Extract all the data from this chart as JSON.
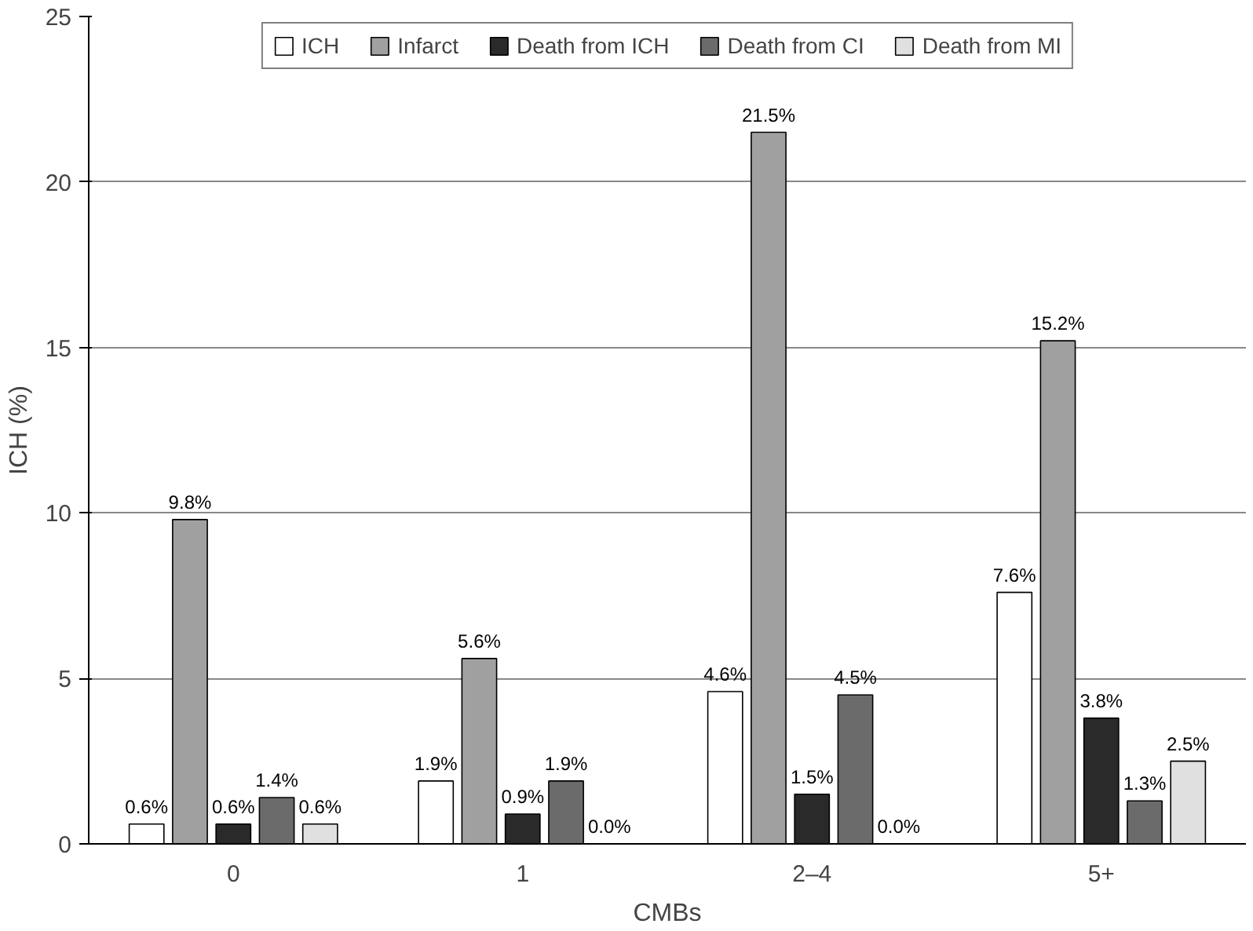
{
  "chart_data": {
    "type": "bar",
    "xlabel": "CMBs",
    "ylabel": "ICH (%)",
    "categories": [
      "0",
      "1",
      "2–4",
      "5+"
    ],
    "series": [
      {
        "name": "ICH",
        "color": "#ffffff",
        "values": [
          0.6,
          1.9,
          4.6,
          7.6
        ],
        "value_labels": [
          "0.6%",
          "1.9%",
          "4.6%",
          "7.6%"
        ]
      },
      {
        "name": "Infarct",
        "color": "#a0a0a0",
        "values": [
          9.8,
          5.6,
          21.5,
          15.2
        ],
        "value_labels": [
          "9.8%",
          "5.6%",
          "21.5%",
          "15.2%"
        ]
      },
      {
        "name": "Death from ICH",
        "color": "#2a2a2a",
        "values": [
          0.6,
          0.9,
          1.5,
          3.8
        ],
        "value_labels": [
          "0.6%",
          "0.9%",
          "1.5%",
          "3.8%"
        ]
      },
      {
        "name": "Death from CI",
        "color": "#6b6b6b",
        "values": [
          1.4,
          1.9,
          4.5,
          1.3
        ],
        "value_labels": [
          "1.4%",
          "1.9%",
          "4.5%",
          "1.3%"
        ]
      },
      {
        "name": "Death from MI",
        "color": "#e0e0e0",
        "values": [
          0.6,
          0.0,
          0.0,
          2.5
        ],
        "value_labels": [
          "0.6%",
          "0.0%",
          "0.0%",
          "2.5%"
        ]
      }
    ],
    "ylim": [
      0,
      25
    ],
    "yticks": [
      0,
      5,
      10,
      15,
      20,
      25
    ],
    "grid": "y",
    "legend": "top"
  }
}
